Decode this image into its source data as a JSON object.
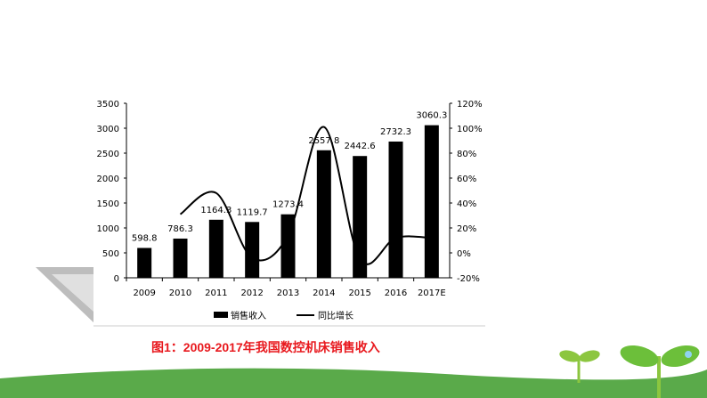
{
  "caption": "图1：2009-2017年我国数控机床销售收入",
  "chart_data": {
    "type": "bar",
    "categories": [
      "2009",
      "2010",
      "2011",
      "2012",
      "2013",
      "2014",
      "2015",
      "2016",
      "2017E"
    ],
    "series": [
      {
        "name": "销售收入",
        "type": "bar",
        "axis": "left",
        "values": [
          598.8,
          786.3,
          1164.3,
          1119.7,
          1273.4,
          2557.8,
          2442.6,
          2732.3,
          3060.3
        ],
        "labels": [
          "598.8",
          "786.3",
          "1164.3",
          "1119.7",
          "1273.4",
          "2557.8",
          "2442.6",
          "2732.3",
          "3060.3"
        ]
      },
      {
        "name": "同比增长",
        "type": "line",
        "axis": "right",
        "values": [
          null,
          31,
          48,
          -4,
          14,
          101,
          -5,
          12,
          12
        ]
      }
    ],
    "left_axis": {
      "range": [
        0,
        3500
      ],
      "ticks": [
        "0",
        "500",
        "1000",
        "1500",
        "2000",
        "2500",
        "3000",
        "3500"
      ]
    },
    "right_axis": {
      "range": [
        -20,
        120
      ],
      "ticks": [
        "-20%",
        "0%",
        "20%",
        "40%",
        "60%",
        "80%",
        "100%",
        "120%"
      ]
    },
    "legend": "bottom",
    "colors": {
      "bar": "#000000",
      "line": "#000000",
      "caption": "#e8191e",
      "green": "#5aaa4a"
    }
  }
}
